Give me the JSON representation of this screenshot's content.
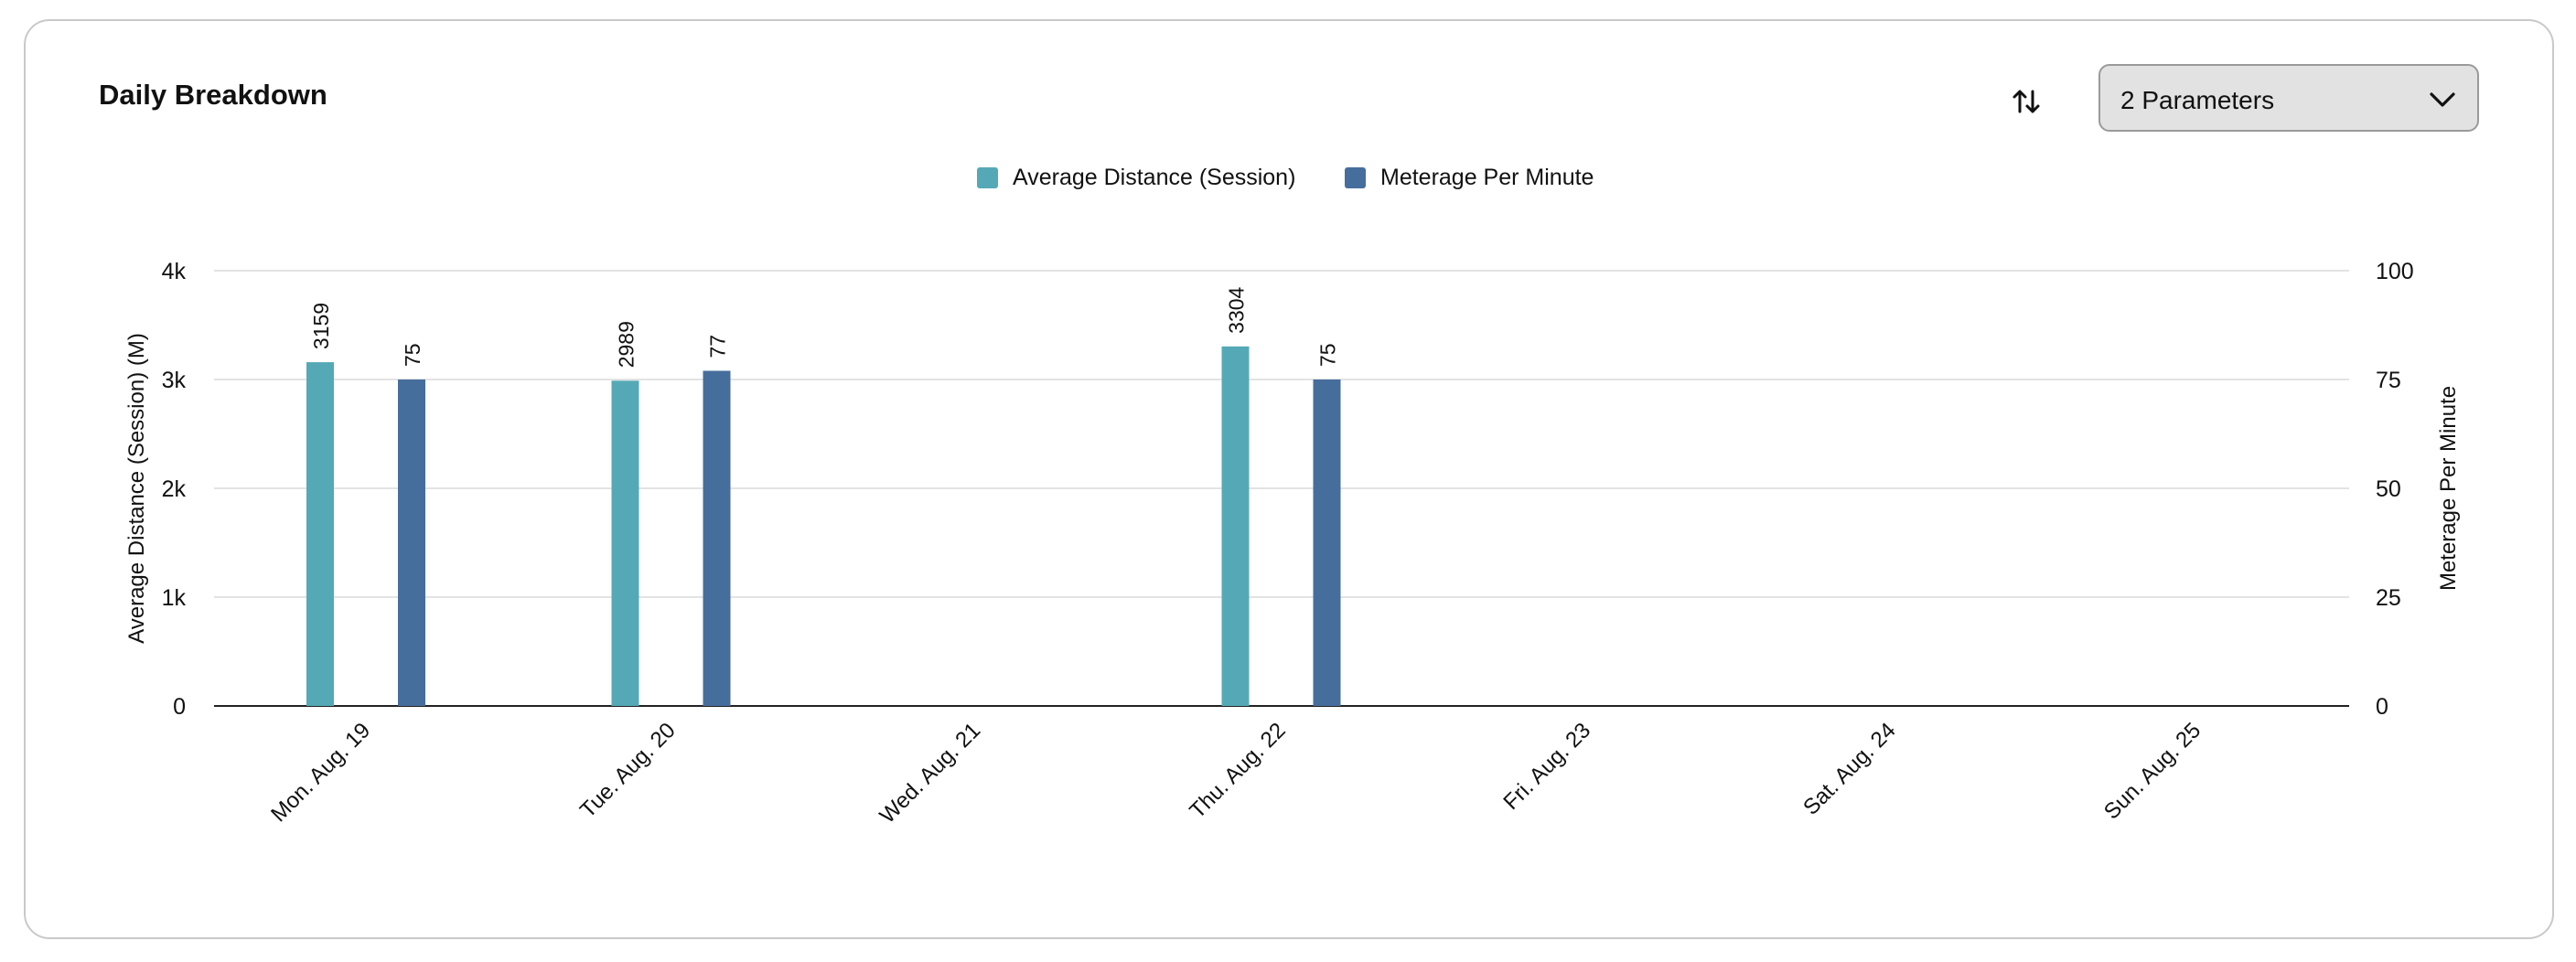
{
  "card": {
    "title": "Daily Breakdown",
    "sort_icon": "swap-vertical-icon",
    "parameters_select": {
      "value": "2 Parameters",
      "icon": "chevron-down-icon"
    }
  },
  "chart_data": {
    "type": "bar",
    "categories": [
      "Mon. Aug. 19",
      "Tue. Aug. 20",
      "Wed. Aug. 21",
      "Thu. Aug. 22",
      "Fri. Aug. 23",
      "Sat. Aug. 24",
      "Sun. Aug. 25"
    ],
    "series": [
      {
        "name": "Average Distance (Session)",
        "values": [
          3159,
          2989,
          null,
          3304,
          null,
          null,
          null
        ],
        "axis": "left",
        "color": "#55a9b7"
      },
      {
        "name": "Meterage Per Minute",
        "values": [
          75,
          77,
          null,
          75,
          null,
          null,
          null
        ],
        "axis": "right",
        "color": "#466e9c"
      }
    ],
    "y_left": {
      "label": "Average Distance (Session) (M)",
      "range": [
        0,
        4000
      ],
      "ticks": [
        0,
        1000,
        2000,
        3000,
        4000
      ],
      "tick_labels": [
        "0",
        "1k",
        "2k",
        "3k",
        "4k"
      ]
    },
    "y_right": {
      "label": "Meterage Per Minute",
      "range": [
        0,
        100
      ],
      "ticks": [
        0,
        25,
        50,
        75,
        100
      ],
      "tick_labels": [
        "0",
        "25",
        "50",
        "75",
        "100"
      ]
    },
    "legend_position": "top-center",
    "grid": true,
    "data_labels": true
  }
}
